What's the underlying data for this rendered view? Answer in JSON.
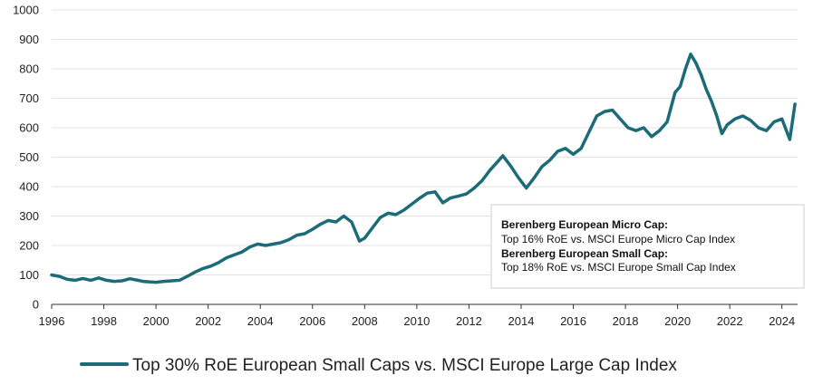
{
  "chart_data": {
    "type": "line",
    "title": "",
    "xlabel": "",
    "ylabel": "",
    "xlim": [
      1996,
      2024.6
    ],
    "ylim": [
      0,
      1000
    ],
    "grid": true,
    "legend_position": "bottom",
    "x_ticks": [
      "1996",
      "1998",
      "2000",
      "2002",
      "2004",
      "2006",
      "2008",
      "2010",
      "2012",
      "2014",
      "2016",
      "2018",
      "2020",
      "2022",
      "2024"
    ],
    "y_ticks": [
      "0",
      "100",
      "200",
      "300",
      "400",
      "500",
      "600",
      "700",
      "800",
      "900",
      "1000"
    ],
    "line_color": "#1b6b78",
    "series": [
      {
        "name": "Top 30% RoE European Small Caps vs. MSCI Europe Large Cap Index",
        "x": [
          1996.0,
          1996.3,
          1996.6,
          1996.9,
          1997.2,
          1997.5,
          1997.8,
          1998.1,
          1998.4,
          1998.7,
          1999.0,
          1999.3,
          1999.5,
          1999.8,
          2000.0,
          2000.3,
          2000.6,
          2000.9,
          2001.2,
          2001.5,
          2001.8,
          2002.1,
          2002.4,
          2002.7,
          2003.0,
          2003.3,
          2003.6,
          2003.9,
          2004.2,
          2004.5,
          2004.8,
          2005.1,
          2005.4,
          2005.7,
          2006.0,
          2006.3,
          2006.6,
          2006.9,
          2007.2,
          2007.5,
          2007.8,
          2008.0,
          2008.3,
          2008.6,
          2008.9,
          2009.2,
          2009.5,
          2009.8,
          2010.1,
          2010.4,
          2010.7,
          2011.0,
          2011.3,
          2011.6,
          2011.9,
          2012.2,
          2012.5,
          2012.8,
          2013.1,
          2013.3,
          2013.6,
          2013.9,
          2014.2,
          2014.5,
          2014.8,
          2015.1,
          2015.4,
          2015.7,
          2016.0,
          2016.3,
          2016.6,
          2016.9,
          2017.2,
          2017.5,
          2017.8,
          2018.1,
          2018.4,
          2018.7,
          2019.0,
          2019.3,
          2019.6,
          2019.9,
          2020.1,
          2020.3,
          2020.5,
          2020.7,
          2020.9,
          2021.1,
          2021.3,
          2021.5,
          2021.7,
          2021.9,
          2022.2,
          2022.5,
          2022.8,
          2023.1,
          2023.4,
          2023.7,
          2024.0,
          2024.3,
          2024.5
        ],
        "values": [
          100,
          95,
          85,
          82,
          88,
          82,
          90,
          82,
          78,
          80,
          87,
          82,
          78,
          76,
          75,
          78,
          80,
          82,
          95,
          110,
          122,
          130,
          142,
          158,
          168,
          178,
          195,
          205,
          200,
          205,
          210,
          220,
          235,
          240,
          255,
          272,
          285,
          280,
          300,
          280,
          215,
          225,
          260,
          295,
          310,
          305,
          320,
          340,
          360,
          378,
          382,
          345,
          362,
          368,
          375,
          395,
          420,
          455,
          485,
          505,
          470,
          430,
          395,
          430,
          468,
          490,
          520,
          530,
          510,
          530,
          585,
          640,
          655,
          660,
          630,
          600,
          590,
          600,
          570,
          590,
          620,
          720,
          740,
          800,
          850,
          820,
          780,
          730,
          690,
          640,
          580,
          610,
          630,
          640,
          625,
          600,
          590,
          620,
          630,
          560,
          680
        ]
      }
    ],
    "annotation": {
      "line1_bold": "Berenberg European Micro Cap:",
      "line2": "Top 16% RoE vs. MSCI Europe Micro Cap Index",
      "line3_bold": "Berenberg European Small Cap:",
      "line4": "Top 18% RoE vs. MSCI Europe Small Cap Index"
    }
  }
}
